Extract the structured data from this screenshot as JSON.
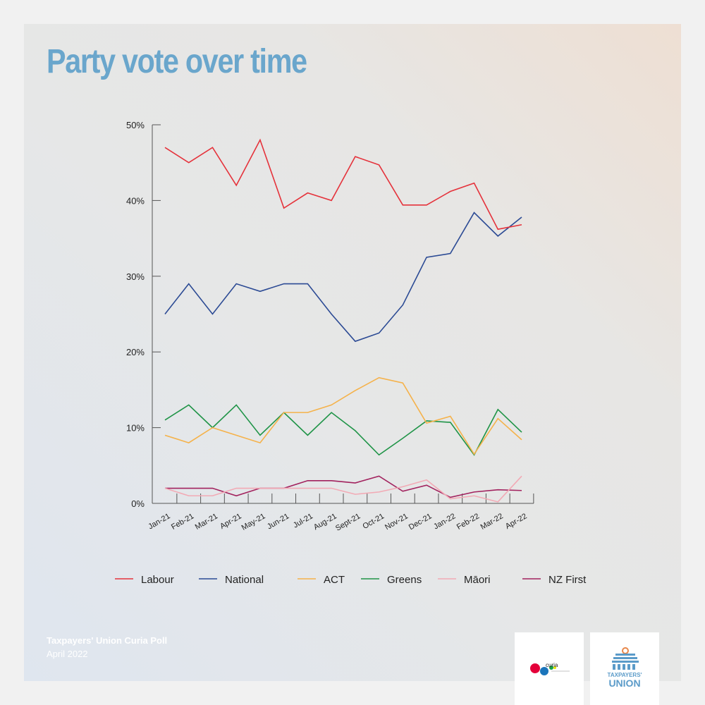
{
  "title": "Party vote over time",
  "footer": {
    "line1": "Taxpayers' Union Curia Poll",
    "line2": "April 2022"
  },
  "logos": [
    "curia",
    "TAXPAYERS' UNION"
  ],
  "chart_data": {
    "type": "line",
    "title": "Party vote over time",
    "x": [
      "Jan-21",
      "Feb-21",
      "Mar-21",
      "Apr-21",
      "May-21",
      "Jun-21",
      "Jul-21",
      "Aug-21",
      "Sept-21",
      "Oct-21",
      "Nov-21",
      "Dec-21",
      "Jan-22",
      "Feb-22",
      "Mar-22",
      "Apr-22"
    ],
    "ylim": [
      0,
      50
    ],
    "yticks": [
      "0%",
      "10%",
      "20%",
      "30%",
      "40%",
      "50%"
    ],
    "grid": false,
    "legend": "bottom",
    "series": [
      {
        "name": "Labour",
        "color": "#e5323b",
        "values": [
          47,
          45,
          47,
          42,
          48,
          39,
          41,
          40,
          45.8,
          44.7,
          39.4,
          39.4,
          41.2,
          42.3,
          36.2,
          36.8
        ]
      },
      {
        "name": "National",
        "color": "#2b4a94",
        "values": [
          25,
          29,
          25,
          29,
          28,
          29,
          29,
          25,
          21.4,
          22.5,
          26.2,
          32.5,
          33,
          38.4,
          35.3,
          37.8
        ]
      },
      {
        "name": "ACT",
        "color": "#f5b24a",
        "values": [
          9,
          8,
          10,
          9,
          8,
          12,
          12,
          13,
          14.9,
          16.6,
          15.9,
          10.6,
          11.5,
          6.5,
          11.2,
          8.4
        ]
      },
      {
        "name": "Greens",
        "color": "#1f9447",
        "values": [
          11,
          13,
          10,
          13,
          9,
          12,
          9,
          12,
          9.6,
          6.4,
          8.6,
          10.9,
          10.7,
          6.4,
          12.4,
          9.4
        ]
      },
      {
        "name": "Māori",
        "color": "#f2aab5",
        "values": [
          2,
          1,
          1,
          2,
          2,
          2,
          2,
          2,
          1.2,
          1.5,
          2.2,
          3.1,
          0.6,
          1,
          0.2,
          3.6
        ]
      },
      {
        "name": "NZ First",
        "color": "#a2225e",
        "values": [
          2,
          2,
          2,
          1,
          2,
          2,
          3,
          3,
          2.7,
          3.6,
          1.6,
          2.4,
          0.8,
          1.5,
          1.8,
          1.7
        ]
      }
    ]
  }
}
